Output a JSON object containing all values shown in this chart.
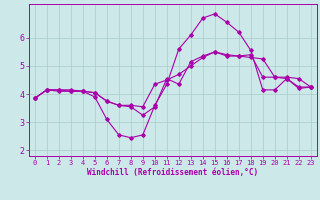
{
  "background_color": "#cce8e8",
  "line_color": "#aa00aa",
  "xlabel": "Windchill (Refroidissement éolien,°C)",
  "xlim": [
    -0.5,
    23.5
  ],
  "ylim": [
    1.8,
    7.2
  ],
  "yticks": [
    2,
    3,
    4,
    5,
    6
  ],
  "xticks": [
    0,
    1,
    2,
    3,
    4,
    5,
    6,
    7,
    8,
    9,
    10,
    11,
    12,
    13,
    14,
    15,
    16,
    17,
    18,
    19,
    20,
    21,
    22,
    23
  ],
  "grid_color": "#aacccc",
  "line1_x": [
    0,
    1,
    2,
    3,
    4,
    5,
    6,
    7,
    8,
    9,
    10,
    11,
    12,
    13,
    14,
    15,
    16,
    17,
    18,
    19,
    20,
    21,
    22,
    23
  ],
  "line1_y": [
    3.85,
    4.15,
    4.15,
    4.15,
    4.1,
    4.05,
    3.75,
    3.6,
    3.6,
    3.55,
    4.35,
    4.5,
    4.7,
    5.0,
    5.3,
    5.5,
    5.4,
    5.35,
    5.3,
    5.25,
    4.6,
    4.6,
    4.55,
    4.25
  ],
  "line2_x": [
    0,
    1,
    2,
    3,
    4,
    5,
    6,
    7,
    8,
    9,
    10,
    11,
    12,
    13,
    14,
    15,
    16,
    17,
    18,
    19,
    20,
    21,
    22,
    23
  ],
  "line2_y": [
    3.85,
    4.15,
    4.1,
    4.1,
    4.1,
    3.9,
    3.1,
    2.55,
    2.45,
    2.55,
    3.6,
    4.35,
    5.6,
    6.1,
    6.7,
    6.85,
    6.55,
    6.2,
    5.55,
    4.15,
    4.15,
    4.55,
    4.2,
    4.25
  ],
  "line3_x": [
    0,
    1,
    2,
    3,
    4,
    5,
    6,
    7,
    8,
    9,
    10,
    11,
    12,
    13,
    14,
    15,
    16,
    17,
    18,
    19,
    20,
    21,
    22,
    23
  ],
  "line3_y": [
    3.85,
    4.15,
    4.15,
    4.1,
    4.1,
    4.05,
    3.75,
    3.6,
    3.55,
    3.25,
    3.55,
    4.55,
    4.35,
    5.15,
    5.35,
    5.5,
    5.35,
    5.35,
    5.4,
    4.6,
    4.6,
    4.55,
    4.25,
    4.25
  ],
  "tick_fontsize": 5,
  "xlabel_fontsize": 5.5
}
